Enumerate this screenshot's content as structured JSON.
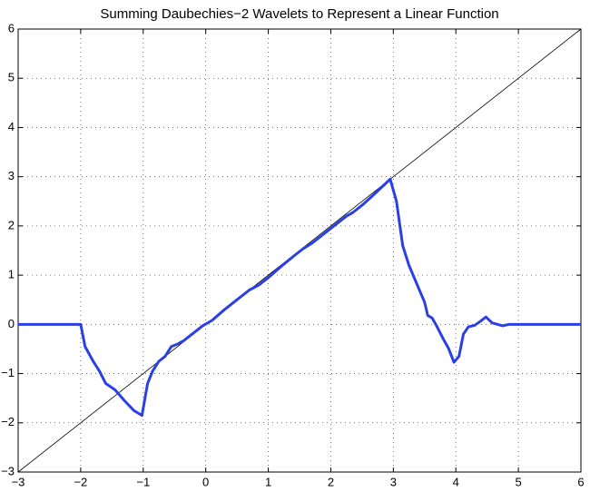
{
  "chart_data": {
    "type": "line",
    "title": "Summing Daubechies−2 Wavelets to Represent a Linear Function",
    "xlim": [
      -3,
      6
    ],
    "ylim": [
      -3,
      6
    ],
    "xticks": [
      {
        "value": -3,
        "label": "−3"
      },
      {
        "value": -2,
        "label": "−2"
      },
      {
        "value": -1,
        "label": "−1"
      },
      0,
      1,
      2,
      3,
      4,
      5,
      6
    ],
    "yticks": [
      {
        "value": -3,
        "label": "−3"
      },
      {
        "value": -2,
        "label": "−2"
      },
      {
        "value": -1,
        "label": "−1"
      },
      0,
      1,
      2,
      3,
      4,
      5,
      6
    ],
    "grid": true,
    "series": [
      {
        "color": "#000000",
        "line_width": 0.8,
        "x": [
          -3,
          6
        ],
        "values": [
          -3,
          6
        ]
      },
      {
        "color": "#2b3fe6",
        "line_width": 3,
        "x": [
          -3,
          -2,
          -1.93,
          -1.8,
          -1.7,
          -1.6,
          -1.45,
          -1.3,
          -1.15,
          -1.02,
          -0.93,
          -0.85,
          -0.75,
          -0.65,
          -0.55,
          -0.45,
          -0.35,
          -0.2,
          -0.05,
          0.1,
          0.3,
          0.5,
          0.7,
          0.85,
          1,
          1.2,
          1.4,
          1.55,
          1.7,
          1.9,
          2.1,
          2.25,
          2.35,
          2.5,
          2.7,
          2.95,
          3.05,
          3.15,
          3.25,
          3.35,
          3.5,
          3.55,
          3.62,
          3.7,
          3.8,
          3.88,
          3.97,
          4.05,
          4.12,
          4.2,
          4.3,
          4.4,
          4.48,
          4.58,
          4.75,
          4.85,
          6
        ],
        "values": [
          0,
          0,
          -0.45,
          -0.75,
          -0.95,
          -1.2,
          -1.33,
          -1.55,
          -1.75,
          -1.85,
          -1.2,
          -0.95,
          -0.75,
          -0.65,
          -0.45,
          -0.4,
          -0.33,
          -0.18,
          -0.03,
          0.08,
          0.3,
          0.5,
          0.7,
          0.8,
          0.95,
          1.17,
          1.38,
          1.53,
          1.65,
          1.85,
          2.05,
          2.2,
          2.27,
          2.42,
          2.65,
          2.95,
          2.5,
          1.6,
          1.2,
          0.9,
          0.45,
          0.18,
          0.13,
          -0.05,
          -0.3,
          -0.48,
          -0.77,
          -0.65,
          -0.2,
          -0.05,
          -0.02,
          0.07,
          0.15,
          0.03,
          -0.03,
          0,
          0
        ]
      }
    ]
  }
}
